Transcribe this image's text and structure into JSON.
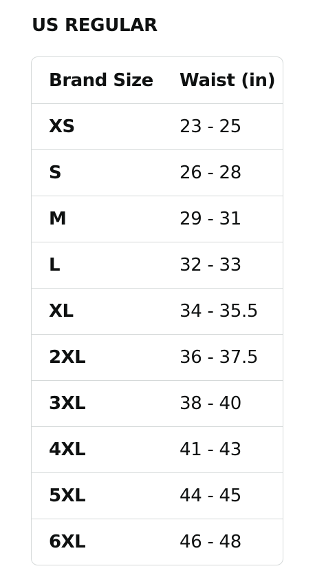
{
  "title": "US REGULAR",
  "table": {
    "headers": [
      "Brand Size",
      "Waist (in)"
    ],
    "rows": [
      [
        "XS",
        "23 - 25"
      ],
      [
        "S",
        "26 - 28"
      ],
      [
        "M",
        "29 - 31"
      ],
      [
        "L",
        "32 - 33"
      ],
      [
        "XL",
        "34 - 35.5"
      ],
      [
        "2XL",
        "36 - 37.5"
      ],
      [
        "3XL",
        "38 - 40"
      ],
      [
        "4XL",
        "41 - 43"
      ],
      [
        "5XL",
        "44 - 45"
      ],
      [
        "6XL",
        "46 - 48"
      ]
    ]
  }
}
